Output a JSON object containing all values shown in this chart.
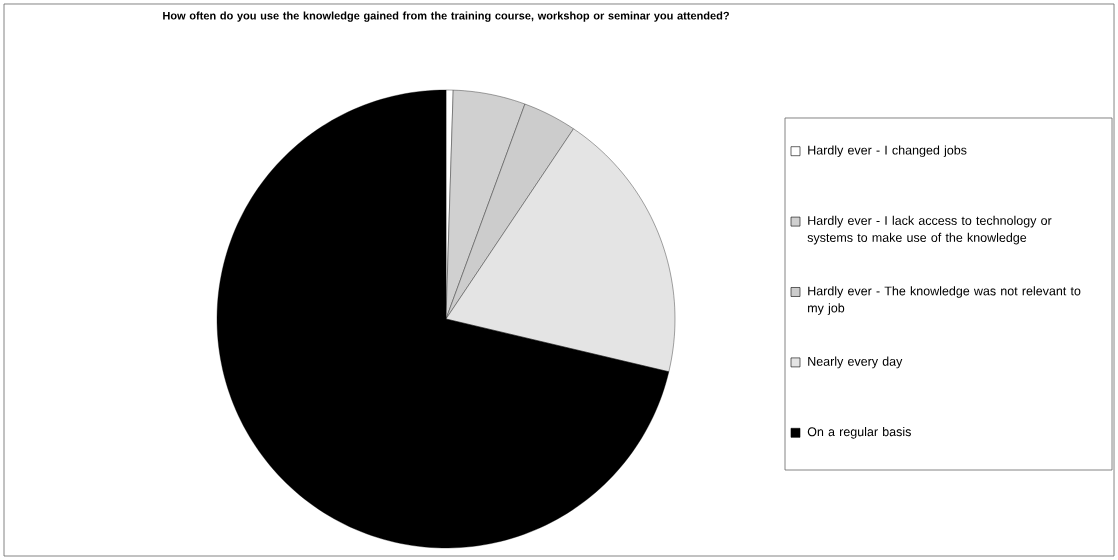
{
  "chart_data": {
    "type": "pie",
    "title": "How often do you use the knowledge gained from the training course, workshop or seminar you attended?",
    "categories": [
      "Hardly ever - I changed jobs",
      "Hardly ever - I lack access to technology or systems to make use of the knowledge",
      "Hardly ever - The knowledge was not relevant to my job",
      "Nearly every day",
      "On a regular basis"
    ],
    "values": [
      0.5,
      5.1,
      3.8,
      19.3,
      71.3
    ],
    "colors": [
      "#ffffff",
      "#d0d0d0",
      "#cccccc",
      "#e4e4e4",
      "#000000"
    ],
    "legend": "right"
  }
}
